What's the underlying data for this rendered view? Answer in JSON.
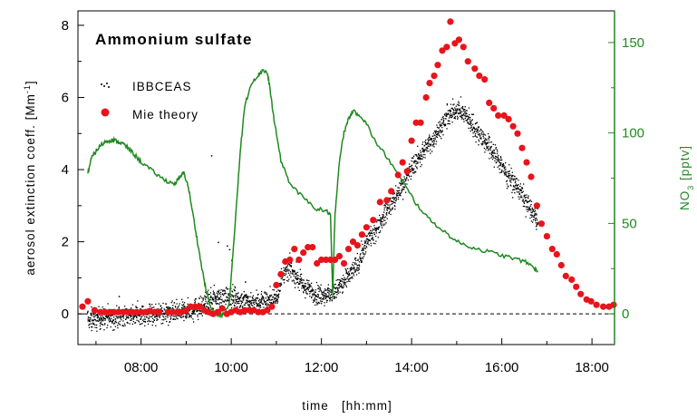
{
  "chart_data": {
    "type": "scatter",
    "title": "Ammonium sulfate",
    "xlabel": "time   [hh:mm]",
    "ylabel": "aerosol extinction coeff.   [Mm",
    "ylabel_sup": "-1",
    "ylabel_end": "]",
    "y2label": "NO",
    "y2label_sub": "3",
    "y2label_end": "   [pptv]",
    "xlim": [
      6.6,
      18.5
    ],
    "ylim": [
      -0.85,
      8.4
    ],
    "y2lim": [
      -17,
      167.5
    ],
    "x_ticks": [
      "08:00",
      "10:00",
      "12:00",
      "14:00",
      "16:00",
      "18:00"
    ],
    "x_tick_values": [
      8,
      10,
      12,
      14,
      16,
      18
    ],
    "y_ticks": [
      "0",
      "2",
      "4",
      "6",
      "8"
    ],
    "y_tick_values": [
      0,
      2,
      4,
      6,
      8
    ],
    "y2_ticks": [
      "0",
      "50",
      "100",
      "150"
    ],
    "y2_tick_values": [
      0,
      50,
      100,
      150
    ],
    "legend_position": "top-left",
    "colors": {
      "ibbceas": "#000000",
      "mie": "#e8141b",
      "no3": "#1f8a1f",
      "axis_right": "#1f8a1f"
    },
    "series": [
      {
        "name": "IBBCEAS",
        "kind": "dense-scatter",
        "envelope_x": [
          6.8,
          7.5,
          8.2,
          8.8,
          9.3,
          9.6,
          10.0,
          10.5,
          11.0,
          11.1,
          11.3,
          11.6,
          11.9,
          12.2,
          12.5,
          12.8,
          13.0,
          13.3,
          13.5,
          13.8,
          14.0,
          14.3,
          14.6,
          14.8,
          15.0,
          15.2,
          15.5,
          15.8,
          16.1,
          16.4,
          16.8
        ],
        "envelope_y": [
          -0.15,
          -0.05,
          0.0,
          0.05,
          0.2,
          0.45,
          0.5,
          0.35,
          0.45,
          1.0,
          1.3,
          0.75,
          0.55,
          0.55,
          0.9,
          1.4,
          2.0,
          2.55,
          3.0,
          3.6,
          4.1,
          4.6,
          5.1,
          5.5,
          5.7,
          5.5,
          5.0,
          4.5,
          3.9,
          3.4,
          2.55
        ],
        "spread": 0.35
      },
      {
        "name": "Mie theory",
        "kind": "points",
        "x": [
          6.7,
          6.82,
          6.97,
          7.1,
          7.2,
          7.3,
          7.4,
          7.5,
          7.6,
          7.7,
          7.8,
          7.9,
          8.0,
          8.1,
          8.2,
          8.3,
          8.4,
          8.6,
          8.7,
          8.8,
          8.9,
          9.0,
          9.1,
          9.2,
          9.3,
          9.4,
          9.5,
          9.6,
          9.7,
          9.8,
          9.9,
          10.0,
          10.1,
          10.2,
          10.3,
          10.4,
          10.5,
          10.6,
          10.7,
          10.8,
          10.9,
          11.0,
          11.1,
          11.2,
          11.3,
          11.4,
          11.5,
          11.6,
          11.7,
          11.8,
          11.9,
          12.0,
          12.1,
          12.2,
          12.3,
          12.4,
          12.5,
          12.6,
          12.7,
          12.8,
          12.9,
          13.0,
          13.15,
          13.3,
          13.45,
          13.55,
          13.7,
          13.8,
          13.9,
          14.0,
          14.1,
          14.2,
          14.32,
          14.4,
          14.5,
          14.58,
          14.68,
          14.78,
          14.86,
          14.96,
          15.05,
          15.15,
          15.25,
          15.4,
          15.5,
          15.62,
          15.72,
          15.82,
          15.92,
          16.05,
          16.15,
          16.25,
          16.35,
          16.45,
          16.55,
          16.65,
          16.78,
          16.88,
          17.0,
          17.12,
          17.22,
          17.32,
          17.42,
          17.55,
          17.65,
          17.75,
          17.88,
          17.98,
          18.1,
          18.25,
          18.38,
          18.48
        ],
        "y": [
          0.2,
          0.35,
          0.1,
          0.05,
          0.05,
          0.05,
          0.05,
          0.05,
          0.05,
          0.05,
          0.05,
          0.05,
          0.05,
          0.05,
          0.08,
          0.05,
          0.05,
          0.05,
          0.05,
          0.05,
          0.05,
          0.1,
          0.2,
          0.2,
          0.2,
          0.1,
          0.05,
          0.0,
          0.05,
          0.15,
          0.0,
          0.05,
          0.1,
          0.05,
          0.1,
          0.1,
          0.1,
          0.05,
          0.05,
          0.1,
          0.2,
          0.8,
          1.1,
          1.45,
          1.5,
          1.8,
          1.5,
          1.7,
          1.85,
          1.85,
          1.4,
          1.5,
          1.5,
          1.5,
          1.5,
          1.6,
          1.4,
          1.8,
          2.0,
          1.9,
          2.2,
          2.4,
          2.6,
          3.1,
          3.15,
          3.4,
          3.85,
          4.2,
          3.95,
          4.8,
          5.3,
          5.3,
          6.0,
          6.4,
          6.6,
          6.9,
          7.3,
          7.4,
          8.1,
          7.5,
          7.6,
          7.4,
          7.0,
          6.8,
          6.6,
          6.5,
          5.85,
          5.7,
          5.5,
          5.5,
          5.4,
          5.2,
          5.0,
          4.6,
          4.2,
          3.8,
          3.0,
          2.5,
          2.15,
          1.8,
          1.65,
          1.35,
          1.05,
          0.95,
          0.75,
          0.55,
          0.4,
          0.35,
          0.25,
          0.2,
          0.2,
          0.25
        ]
      },
      {
        "name": "NO3",
        "kind": "line",
        "axis": "right",
        "x": [
          6.82,
          6.9,
          7.0,
          7.1,
          7.2,
          7.3,
          7.4,
          7.5,
          7.6,
          7.7,
          7.85,
          8.0,
          8.2,
          8.4,
          8.6,
          8.75,
          8.85,
          8.95,
          9.05,
          9.15,
          9.25,
          9.35,
          9.45,
          9.55,
          9.7,
          9.85,
          9.95,
          10.0,
          10.1,
          10.2,
          10.3,
          10.45,
          10.6,
          10.7,
          10.8,
          10.85,
          10.95,
          11.1,
          11.3,
          11.6,
          11.9,
          12.1,
          12.2,
          12.25,
          12.3,
          12.4,
          12.5,
          12.6,
          12.7,
          12.85,
          13.0,
          13.2,
          13.5,
          13.8,
          14.1,
          14.4,
          14.7,
          15.0,
          15.3,
          15.6,
          15.9,
          16.2,
          16.5,
          16.7,
          16.8
        ],
        "y": [
          78,
          86,
          90,
          93,
          95,
          96,
          96,
          95,
          94,
          92,
          88,
          84,
          80,
          76,
          73,
          72,
          75,
          78,
          70,
          55,
          40,
          25,
          12,
          3,
          -1,
          0,
          5,
          20,
          55,
          90,
          115,
          128,
          132,
          135,
          133,
          126,
          107,
          85,
          72,
          64,
          58,
          57,
          55,
          10,
          55,
          85,
          100,
          108,
          112,
          110,
          105,
          95,
          85,
          73,
          61,
          52,
          46,
          40,
          37,
          35,
          33,
          31,
          29,
          26,
          23
        ]
      }
    ]
  }
}
